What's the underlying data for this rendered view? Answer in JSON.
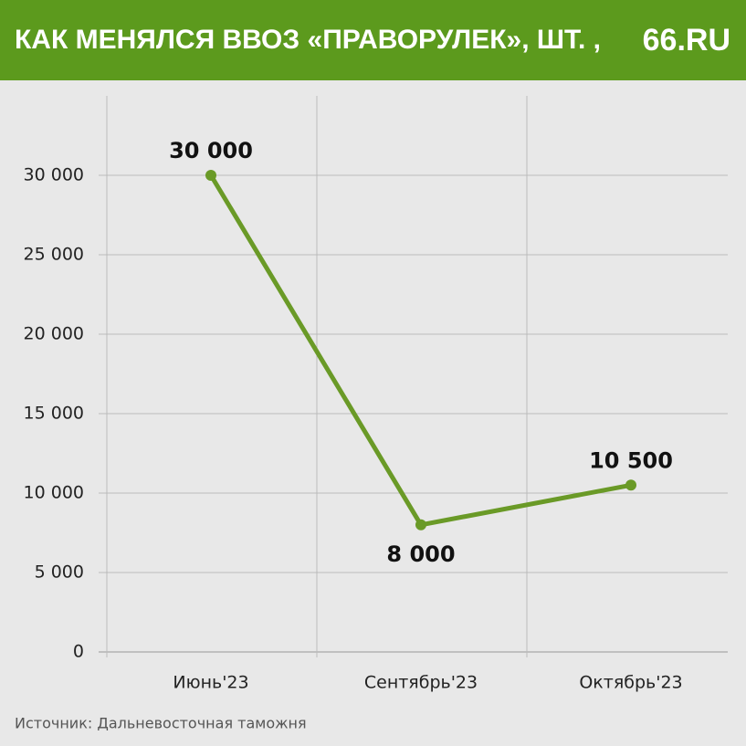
{
  "chart_data": {
    "type": "line",
    "title": "КАК МЕНЯЛСЯ ВВОЗ «ПРАВОРУЛЕК», ШТ. ,",
    "logo": "66.RU",
    "source": "Источник: Дальневосточная таможня",
    "categories": [
      "Июнь'23",
      "Сентябрь'23",
      "Октябрь'23"
    ],
    "values": [
      30000,
      8000,
      10500
    ],
    "value_labels": [
      "30 000",
      "8 000",
      "10 500"
    ],
    "color": "#6a9a27",
    "ylim": [
      0,
      35000
    ],
    "yticks": [
      0,
      {
        "value": 5000,
        "label": "5 000"
      },
      {
        "value": 10000,
        "label": "10 000"
      },
      {
        "value": 15000,
        "label": "15 000"
      },
      {
        "value": 20000,
        "label": "20 000"
      },
      {
        "value": 25000,
        "label": "25 000"
      },
      {
        "value": 30000,
        "label": "30 000"
      }
    ],
    "grid": true
  }
}
